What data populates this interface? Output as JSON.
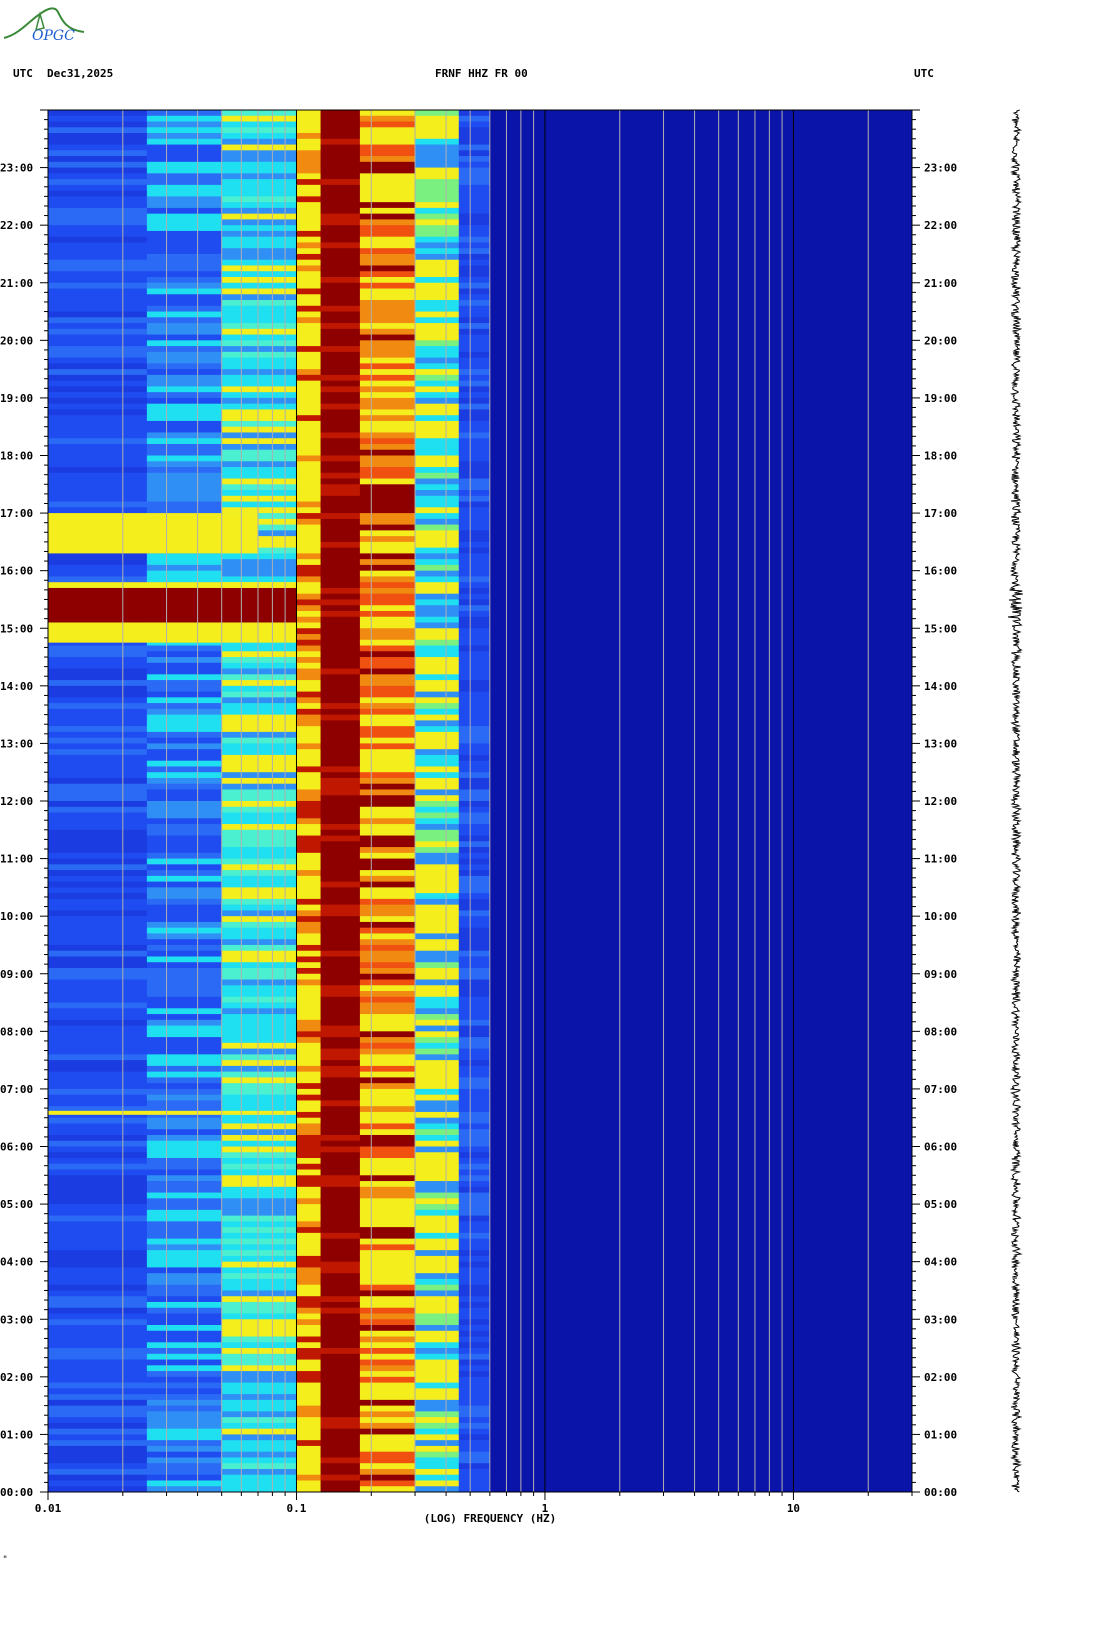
{
  "header": {
    "left_tz": "UTC",
    "date": "Dec31,2025",
    "station": "FRNF HHZ FR 00",
    "right_tz": "UTC"
  },
  "logo": {
    "text": "OPGC",
    "icon": "opgc-logo-icon"
  },
  "footer_mark": "\"",
  "colors": {
    "background_low": "#1a1aaa",
    "dark_blue": "#0b14a8",
    "blue": "#1f4cf0",
    "cyan": "#1ee0f0",
    "yellow": "#f4ee1c",
    "orange": "#f08a10",
    "red_high": "#8e0000",
    "grid": "#b0b0b0",
    "trace": "#000000"
  },
  "chart_data": {
    "type": "heatmap",
    "title": "FRNF HHZ FR 00",
    "xlabel": "(LOG) FREQUENCY (HZ)",
    "ylabel": "UTC",
    "x_scale": "log",
    "xlim": [
      0.01,
      30
    ],
    "x_ticks": [
      {
        "value": 0.01,
        "label": "0.01"
      },
      {
        "value": 0.1,
        "label": "0.1"
      },
      {
        "value": 1,
        "label": "1"
      },
      {
        "value": 10,
        "label": "10"
      }
    ],
    "ylim_hours": [
      0,
      24
    ],
    "y_ticks": [
      {
        "value": 0,
        "label": "00:00"
      },
      {
        "value": 1,
        "label": "01:00"
      },
      {
        "value": 2,
        "label": "02:00"
      },
      {
        "value": 3,
        "label": "03:00"
      },
      {
        "value": 4,
        "label": "04:00"
      },
      {
        "value": 5,
        "label": "05:00"
      },
      {
        "value": 6,
        "label": "06:00"
      },
      {
        "value": 7,
        "label": "07:00"
      },
      {
        "value": 8,
        "label": "08:00"
      },
      {
        "value": 9,
        "label": "09:00"
      },
      {
        "value": 10,
        "label": "10:00"
      },
      {
        "value": 11,
        "label": "11:00"
      },
      {
        "value": 12,
        "label": "12:00"
      },
      {
        "value": 13,
        "label": "13:00"
      },
      {
        "value": 14,
        "label": "14:00"
      },
      {
        "value": 15,
        "label": "15:00"
      },
      {
        "value": 16,
        "label": "16:00"
      },
      {
        "value": 17,
        "label": "17:00"
      },
      {
        "value": 18,
        "label": "18:00"
      },
      {
        "value": 19,
        "label": "19:00"
      },
      {
        "value": 20,
        "label": "20:00"
      },
      {
        "value": 21,
        "label": "21:00"
      },
      {
        "value": 22,
        "label": "22:00"
      },
      {
        "value": 23,
        "label": "23:00"
      }
    ],
    "grid_lines_hz": [
      0.02,
      0.03,
      0.04,
      0.05,
      0.06,
      0.07,
      0.08,
      0.09,
      0.2,
      0.3,
      0.4,
      0.5,
      0.6,
      0.7,
      0.8,
      0.9,
      2,
      3,
      4,
      5,
      6,
      7,
      8,
      9,
      20
    ],
    "frequency_bands": [
      {
        "f_min": 0.01,
        "f_max": 0.025,
        "level": "blue"
      },
      {
        "f_min": 0.025,
        "f_max": 0.05,
        "level": "blue-cyan"
      },
      {
        "f_min": 0.05,
        "f_max": 0.1,
        "level": "cyan"
      },
      {
        "f_min": 0.1,
        "f_max": 0.125,
        "level": "yellow-orange"
      },
      {
        "f_min": 0.125,
        "f_max": 0.18,
        "level": "red"
      },
      {
        "f_min": 0.18,
        "f_max": 0.3,
        "level": "orange-yellow"
      },
      {
        "f_min": 0.3,
        "f_max": 0.45,
        "level": "yellow-cyan"
      },
      {
        "f_min": 0.45,
        "f_max": 0.6,
        "level": "blue"
      },
      {
        "f_min": 0.6,
        "f_max": 30,
        "level": "dark-blue"
      }
    ],
    "events_hours": [
      {
        "start": 15.1,
        "end": 15.7,
        "level": "red",
        "f_max": 0.1,
        "note": "earthquake"
      },
      {
        "start": 16.3,
        "end": 17.0,
        "level": "yellow",
        "f_max": 0.07
      },
      {
        "start": 6.55,
        "end": 6.62,
        "level": "yellow",
        "f_max": 0.1
      }
    ],
    "right_trace": {
      "type": "seismogram",
      "event_hour": 15.4
    }
  }
}
